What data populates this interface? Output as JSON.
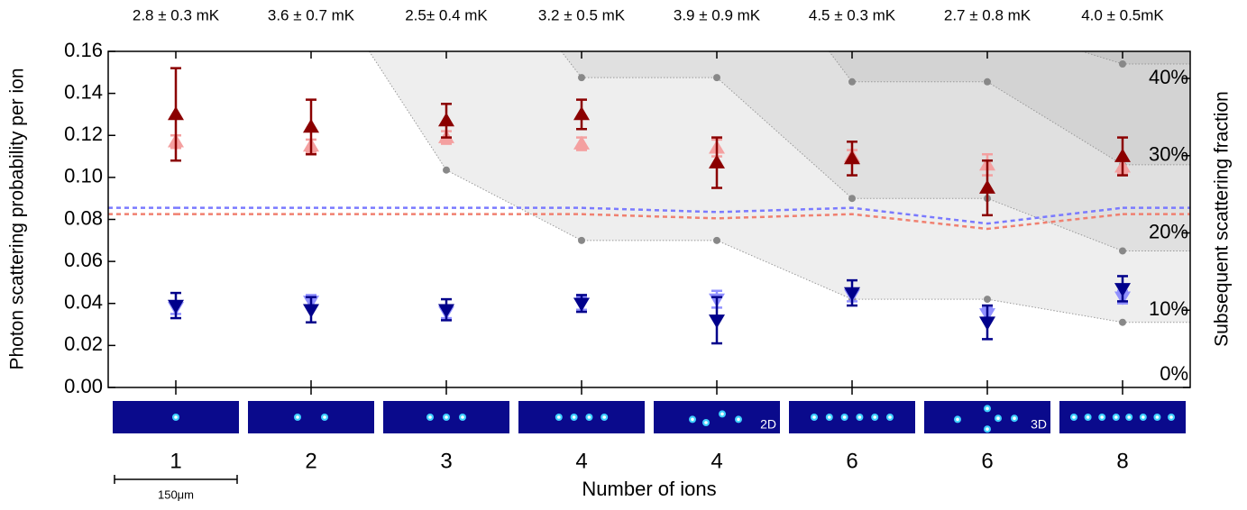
{
  "chart_data": {
    "type": "scatter",
    "temperatures": [
      "2.8 ± 0.3 mK",
      "3.6 ± 0.7 mK",
      "2.5± 0.4 mK",
      "3.2 ± 0.5 mK",
      "3.9 ± 0.9 mK",
      "4.5 ± 0.3 mK",
      "2.7 ± 0.8 mK",
      "4.0 ± 0.5mK"
    ],
    "categories": [
      "1",
      "2",
      "3",
      "4",
      "4",
      "6",
      "6",
      "8"
    ],
    "image_labels": [
      null,
      null,
      null,
      null,
      "2D",
      null,
      "3D",
      null
    ],
    "x_label": "Number of ions",
    "y_label": "Photon scattering probability per ion",
    "y2_label": "Subsequent scattering fraction",
    "scale_bar_label": "150μm",
    "xlim": [
      0.5,
      8.5
    ],
    "ylim": [
      0,
      0.16
    ],
    "yticks": [
      {
        "value": 0,
        "label": "0.00"
      },
      {
        "value": 0.02,
        "label": "0.02"
      },
      {
        "value": 0.04,
        "label": "0.04"
      },
      {
        "value": 0.06,
        "label": "0.06"
      },
      {
        "value": 0.08,
        "label": "0.08"
      },
      {
        "value": 0.1,
        "label": "0.10"
      },
      {
        "value": 0.12,
        "label": "0.12"
      },
      {
        "value": 0.14,
        "label": "0.14"
      },
      {
        "value": 0.16,
        "label": "0.16"
      }
    ],
    "y2lim": [
      0,
      43.5
    ],
    "y2ticks": [
      {
        "value": 0,
        "label": "0%"
      },
      {
        "value": 10,
        "label": "10%"
      },
      {
        "value": 20,
        "label": "20%"
      },
      {
        "value": 30,
        "label": "30%"
      },
      {
        "value": 40,
        "label": "40%"
      }
    ],
    "regions": [
      {
        "color": "#eeeeee",
        "top_x": 2.43,
        "x": [
          3,
          4,
          5,
          6,
          7,
          8
        ],
        "values": [
          0.1035,
          0.07,
          0.07,
          0.042,
          0.042,
          0.031
        ]
      },
      {
        "color": "#e0e0e0",
        "top_x": 3.85,
        "x": [
          4,
          5,
          6,
          7,
          8
        ],
        "values": [
          0.1475,
          0.1475,
          0.09,
          0.09,
          0.065
        ]
      },
      {
        "color": "#d3d3d3",
        "top_x": 5.83,
        "x": [
          6,
          7,
          8
        ],
        "values": [
          0.1455,
          0.1455,
          0.106
        ]
      },
      {
        "color": "#c8c8c8",
        "top_x": 7.7,
        "x": [
          8
        ],
        "values": [
          0.154
        ]
      }
    ],
    "lines": [
      {
        "color": "#7a7aff",
        "values": [
          0.0855,
          0.0855,
          0.0855,
          0.0855,
          0.0835,
          0.0855,
          0.078,
          0.0855
        ]
      },
      {
        "color": "#f08070",
        "values": [
          0.0825,
          0.0825,
          0.0825,
          0.0825,
          0.0805,
          0.0825,
          0.0755,
          0.0825
        ]
      }
    ],
    "series": [
      {
        "color": "#f4a0a0",
        "marker": "up",
        "values": [
          0.117,
          0.115,
          0.119,
          0.116,
          0.114,
          0.11,
          0.106,
          0.105
        ],
        "errors": [
          0.003,
          0.003,
          0.003,
          0.003,
          0.004,
          0.003,
          0.005,
          0.003
        ]
      },
      {
        "color": "#8b0000",
        "marker": "up",
        "values": [
          0.13,
          0.124,
          0.127,
          0.13,
          0.107,
          0.109,
          0.095,
          0.11
        ],
        "errors": [
          0.022,
          0.013,
          0.008,
          0.007,
          0.012,
          0.008,
          0.013,
          0.009
        ]
      },
      {
        "color": "#9090ff",
        "marker": "down",
        "values": [
          0.038,
          0.041,
          0.036,
          0.04,
          0.042,
          0.044,
          0.035,
          0.043
        ],
        "errors": [
          0.003,
          0.003,
          0.003,
          0.003,
          0.004,
          0.003,
          0.003,
          0.003
        ]
      },
      {
        "color": "#00008b",
        "marker": "down",
        "values": [
          0.039,
          0.037,
          0.037,
          0.04,
          0.032,
          0.045,
          0.031,
          0.047
        ],
        "errors": [
          0.006,
          0.006,
          0.005,
          0.004,
          0.011,
          0.006,
          0.008,
          0.006
        ]
      }
    ]
  }
}
